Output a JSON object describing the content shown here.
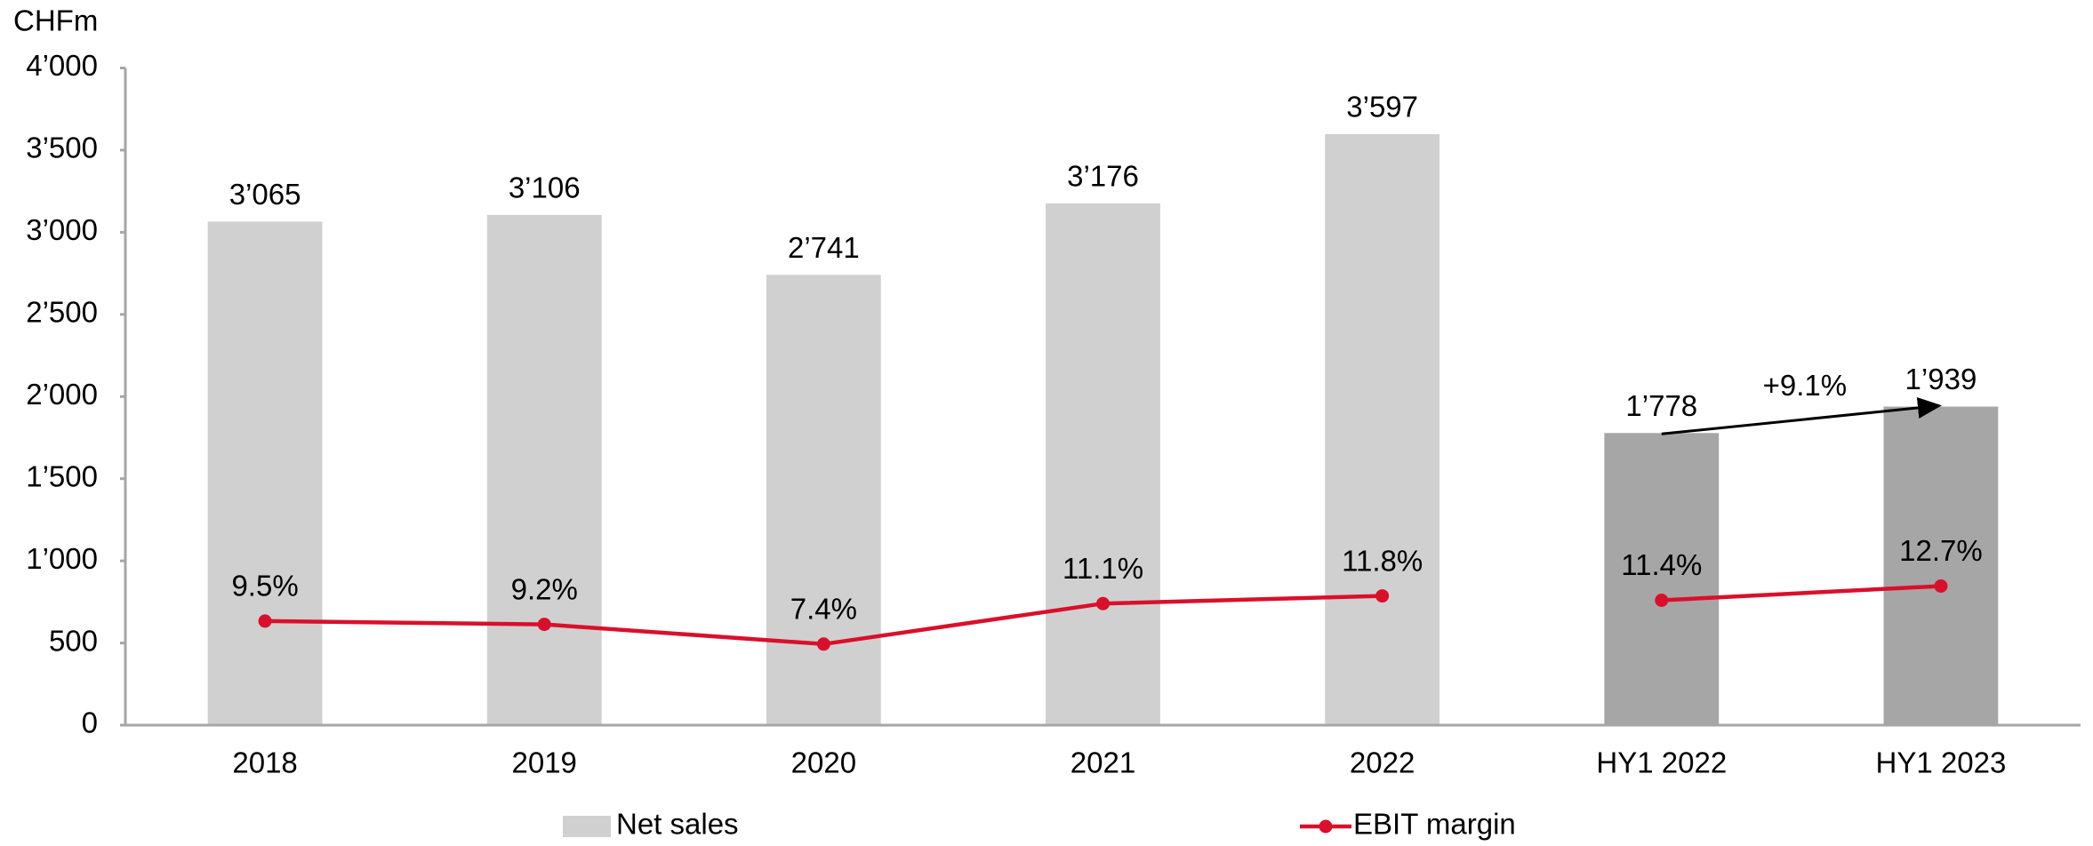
{
  "chart_data": {
    "type": "bar",
    "y_axis_label": "CHFm",
    "categories": [
      "2018",
      "2019",
      "2020",
      "2021",
      "2022",
      "HY1 2022",
      "HY1 2023"
    ],
    "series": [
      {
        "name": "Net sales",
        "type": "bar",
        "color": "#d0d0d0",
        "colors": [
          "#d0d0d0",
          "#d0d0d0",
          "#d0d0d0",
          "#d0d0d0",
          "#d0d0d0",
          "#a6a6a6",
          "#a6a6a6"
        ],
        "values": [
          3065,
          3106,
          2741,
          3176,
          3597,
          1778,
          1939
        ],
        "value_labels": [
          "3’065",
          "3’106",
          "2’741",
          "3’176",
          "3’597",
          "1’778",
          "1’939"
        ]
      },
      {
        "name": "EBIT margin",
        "type": "line",
        "axis": "y2",
        "color": "#d9102b",
        "values": [
          9.5,
          9.2,
          7.4,
          11.1,
          11.8,
          11.4,
          12.7
        ],
        "value_labels": [
          "9.5%",
          "9.2%",
          "7.4%",
          "11.1%",
          "11.8%",
          "11.4%",
          "12.7%"
        ]
      }
    ],
    "ylim": [
      0,
      4000
    ],
    "yticks": [
      0,
      500,
      {
        "value": 1000,
        "label": "1’000"
      },
      {
        "value": 1500,
        "label": "1’500"
      },
      {
        "value": 2000,
        "label": "2’000"
      },
      {
        "value": 2500,
        "label": "2’500"
      },
      {
        "value": 3000,
        "label": "3’000"
      },
      {
        "value": 3500,
        "label": "3’500"
      },
      {
        "value": 4000,
        "label": "4’000"
      }
    ],
    "y2lim": [
      0,
      60
    ],
    "annotations": [
      {
        "text": "+9.1%",
        "from": 5,
        "to": 6
      }
    ],
    "legend": "bottom",
    "grid": false
  }
}
